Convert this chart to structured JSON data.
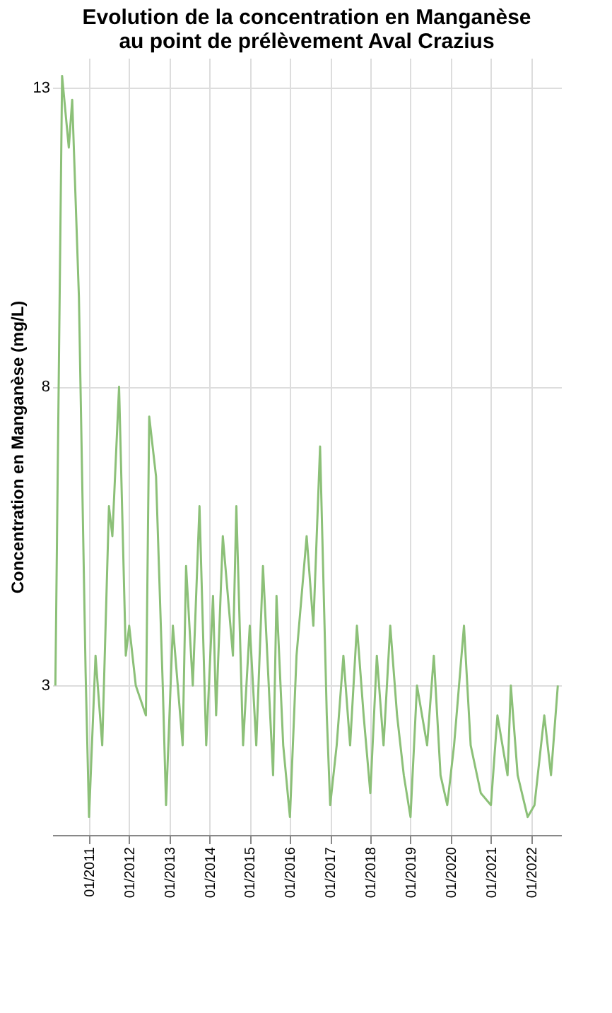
{
  "chart_data": {
    "type": "line",
    "title": "Evolution de la concentration en Manganèse au point de prélèvement Aval Crazius",
    "ylabel": "Concentration en Manganèse (mg/L)",
    "x": [
      "2010-03",
      "2010-05",
      "2010-07",
      "2010-08",
      "2010-10",
      "2010-12",
      "2011-01",
      "2011-03",
      "2011-05",
      "2011-07",
      "2011-08",
      "2011-10",
      "2011-12",
      "2012-01",
      "2012-03",
      "2012-06",
      "2012-07",
      "2012-09",
      "2012-11",
      "2012-12",
      "2013-02",
      "2013-05",
      "2013-06",
      "2013-08",
      "2013-10",
      "2013-12",
      "2014-02",
      "2014-03",
      "2014-05",
      "2014-08",
      "2014-09",
      "2014-11",
      "2015-01",
      "2015-03",
      "2015-05",
      "2015-08",
      "2015-09",
      "2015-11",
      "2016-01",
      "2016-03",
      "2016-06",
      "2016-08",
      "2016-10",
      "2016-12",
      "2017-01",
      "2017-03",
      "2017-05",
      "2017-07",
      "2017-09",
      "2017-11",
      "2018-01",
      "2018-03",
      "2018-05",
      "2018-07",
      "2018-09",
      "2018-11",
      "2019-01",
      "2019-03",
      "2019-06",
      "2019-08",
      "2019-10",
      "2019-12",
      "2020-02",
      "2020-05",
      "2020-07",
      "2020-10",
      "2021-01",
      "2021-03",
      "2021-06",
      "2021-07",
      "2021-09",
      "2021-12",
      "2022-02",
      "2022-05",
      "2022-07",
      "2022-09"
    ],
    "series": [
      {
        "color": "#8cc078",
        "values": [
          3.0,
          13.2,
          12.0,
          12.8,
          9.5,
          3.2,
          0.8,
          3.5,
          2.0,
          6.0,
          5.5,
          8.0,
          3.5,
          4.0,
          3.0,
          2.5,
          7.5,
          6.5,
          3.0,
          1.0,
          4.0,
          2.0,
          5.0,
          3.0,
          6.0,
          2.0,
          4.5,
          2.5,
          5.5,
          3.5,
          6.0,
          2.0,
          4.0,
          2.0,
          5.0,
          1.5,
          4.5,
          2.0,
          0.8,
          3.5,
          5.5,
          4.0,
          7.0,
          2.5,
          1.0,
          2.0,
          3.5,
          2.0,
          4.0,
          2.5,
          1.2,
          3.5,
          2.0,
          4.0,
          2.5,
          1.5,
          0.8,
          3.0,
          2.0,
          3.5,
          1.5,
          1.0,
          2.0,
          4.0,
          2.0,
          1.2,
          1.0,
          2.5,
          1.5,
          3.0,
          1.5,
          0.8,
          1.0,
          2.5,
          1.5,
          3.0
        ]
      }
    ],
    "xlim": [
      "2010-02",
      "2022-10"
    ],
    "xticks": [
      {
        "value": "2011-01",
        "label": "01/2011"
      },
      {
        "value": "2012-01",
        "label": "01/2012"
      },
      {
        "value": "2013-01",
        "label": "01/2013"
      },
      {
        "value": "2014-01",
        "label": "01/2014"
      },
      {
        "value": "2015-01",
        "label": "01/2015"
      },
      {
        "value": "2016-01",
        "label": "01/2016"
      },
      {
        "value": "2017-01",
        "label": "01/2017"
      },
      {
        "value": "2018-01",
        "label": "01/2018"
      },
      {
        "value": "2019-01",
        "label": "01/2019"
      },
      {
        "value": "2020-01",
        "label": "01/2020"
      },
      {
        "value": "2021-01",
        "label": "01/2021"
      },
      {
        "value": "2022-01",
        "label": "01/2022"
      }
    ],
    "ylim": [
      0.5,
      13.5
    ],
    "yticks": [
      3,
      8,
      13
    ],
    "grid": true
  }
}
